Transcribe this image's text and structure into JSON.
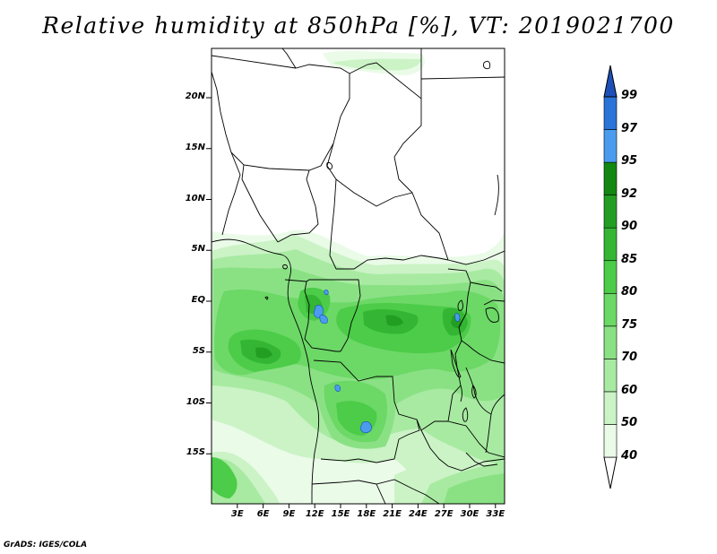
{
  "title": "Relative humidity at 850hPa [%], VT: 2019021700",
  "credit": "GrADS: IGES/COLA",
  "map": {
    "lat_labels": [
      {
        "deg": 20,
        "label": "20N"
      },
      {
        "deg": 15,
        "label": "15N"
      },
      {
        "deg": 10,
        "label": "10N"
      },
      {
        "deg": 5,
        "label": "5N"
      },
      {
        "deg": 0,
        "label": "EQ"
      },
      {
        "deg": -5,
        "label": "5S"
      },
      {
        "deg": -10,
        "label": "10S"
      },
      {
        "deg": -15,
        "label": "15S"
      }
    ],
    "lon_labels": [
      {
        "deg": 3,
        "label": "3E"
      },
      {
        "deg": 6,
        "label": "6E"
      },
      {
        "deg": 9,
        "label": "9E"
      },
      {
        "deg": 12,
        "label": "12E"
      },
      {
        "deg": 15,
        "label": "15E"
      },
      {
        "deg": 18,
        "label": "18E"
      },
      {
        "deg": 21,
        "label": "21E"
      },
      {
        "deg": 24,
        "label": "24E"
      },
      {
        "deg": 27,
        "label": "27E"
      },
      {
        "deg": 30,
        "label": "30E"
      },
      {
        "deg": 33,
        "label": "33E"
      }
    ]
  },
  "colorbar": {
    "levels": [
      "40",
      "50",
      "60",
      "70",
      "75",
      "80",
      "85",
      "90",
      "92",
      "95",
      "97",
      "99"
    ],
    "colors": [
      "#ffffff",
      "#eafbe8",
      "#cbf3c6",
      "#a8eaa2",
      "#8ae184",
      "#6cd866",
      "#4ccc48",
      "#34b634",
      "#229f22",
      "#128712",
      "#4b9cef",
      "#2a73d8",
      "#1c50b8"
    ]
  }
}
